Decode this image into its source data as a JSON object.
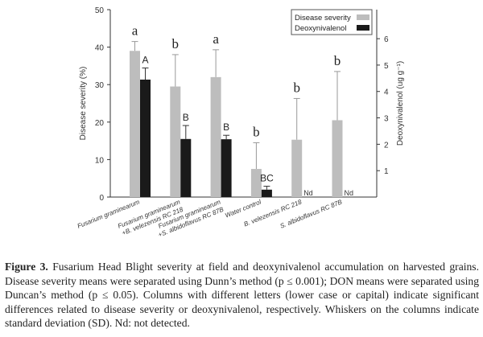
{
  "chart_data": {
    "type": "bar",
    "categories": [
      [
        "Fusarium graminearum"
      ],
      [
        "Fusarium graminearum",
        "+B. velezensis RC 218"
      ],
      [
        "Fusarium graminearum",
        "+S. albidoflavus RC 87B"
      ],
      [
        "Water control"
      ],
      [
        "B. velezensis RC 218"
      ],
      [
        "S. albidoflavus RC 87B"
      ]
    ],
    "ylabel": "Disease severity (%)",
    "y2label": "Deoxynivalenol (ug g⁻¹)",
    "ylim": [
      0,
      50
    ],
    "yticks": [
      "0",
      "10",
      "20",
      "30",
      "40",
      "50"
    ],
    "y2lim": [
      0,
      7.1
    ],
    "y2ticks": [
      "1",
      "2",
      "3",
      "4",
      "5",
      "6"
    ],
    "legend_position": "top-right",
    "series": [
      {
        "name": "Disease severity",
        "axis": "left",
        "color": "#bdbdbd",
        "values": [
          39,
          29.5,
          32,
          7.5,
          15.3,
          20.5
        ],
        "sd_upper": [
          41.5,
          38,
          39.3,
          14.5,
          26.3,
          33.5
        ],
        "letters": [
          "a",
          "b",
          "a",
          "b",
          "b",
          "b"
        ]
      },
      {
        "name": "Deoxynivalenol",
        "axis": "right",
        "color": "#1a1a1a",
        "values": [
          4.45,
          2.2,
          2.19,
          0.28,
          null,
          null
        ],
        "sd_upper": [
          4.89,
          2.71,
          2.34,
          0.41,
          null,
          null
        ],
        "letters": [
          "A",
          "B",
          "B",
          "BC",
          "Nd",
          "Nd"
        ]
      }
    ]
  },
  "caption": {
    "label": "Figure 3.",
    "text": " Fusarium Head Blight severity at field and deoxynivalenol accumulation on harvested grains. Disease severity means were separated using Dunn’s method (p ≤ 0.001); DON means were separated using Duncan’s method (p ≤ 0.05). Columns with different letters (lower case or capital) indicate significant differences related to disease severity or deoxynivalenol, respectively. Whiskers on the columns indicate standard deviation (SD). Nd: not detected."
  }
}
